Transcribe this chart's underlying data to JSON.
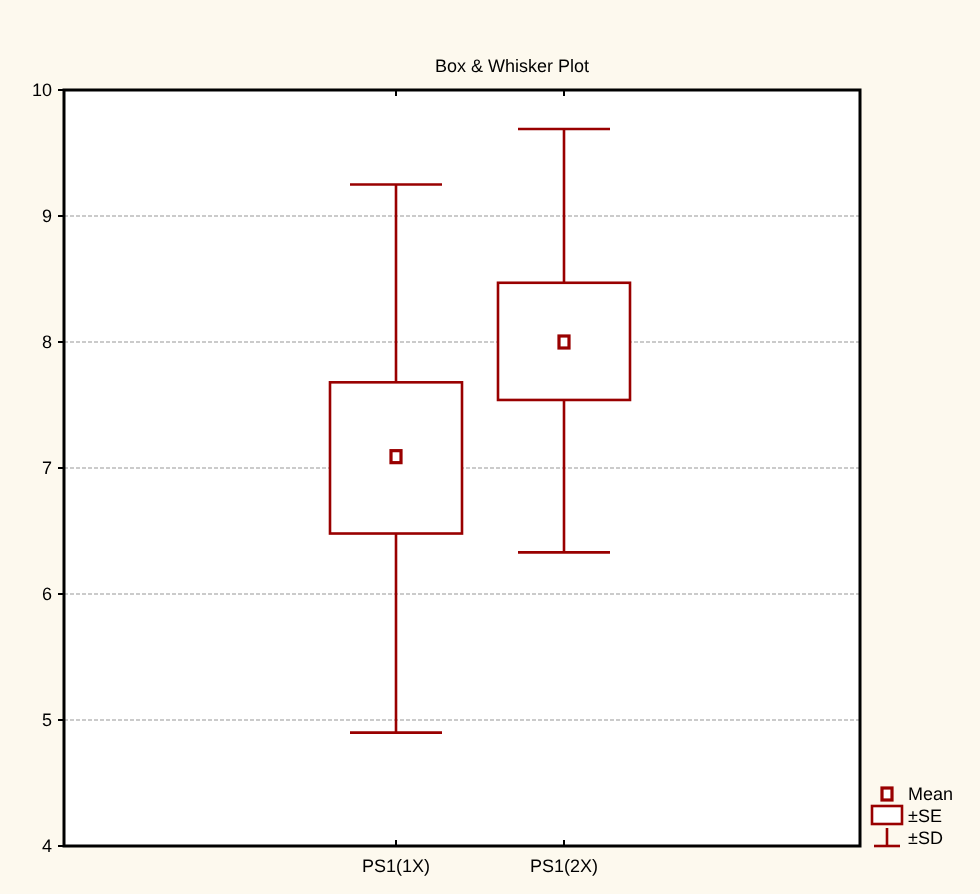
{
  "chart_data": {
    "type": "box",
    "title": "Box & Whisker Plot",
    "categories": [
      "PS1(1X)",
      "PS1(2X)"
    ],
    "series": [
      {
        "color": "#990000",
        "boxes": [
          {
            "low": 4.9,
            "q1": 6.48,
            "q3": 7.68,
            "high": 9.25,
            "mean": 7.09
          },
          {
            "low": 6.33,
            "q1": 7.54,
            "q3": 8.47,
            "high": 9.69,
            "mean": 8.0
          }
        ]
      }
    ],
    "ylim": [
      4,
      10
    ],
    "yticks": [
      4,
      5,
      6,
      7,
      8,
      9,
      10
    ],
    "grid": "y",
    "annotations": [
      "Mean",
      "±SE",
      "±SD"
    ]
  }
}
